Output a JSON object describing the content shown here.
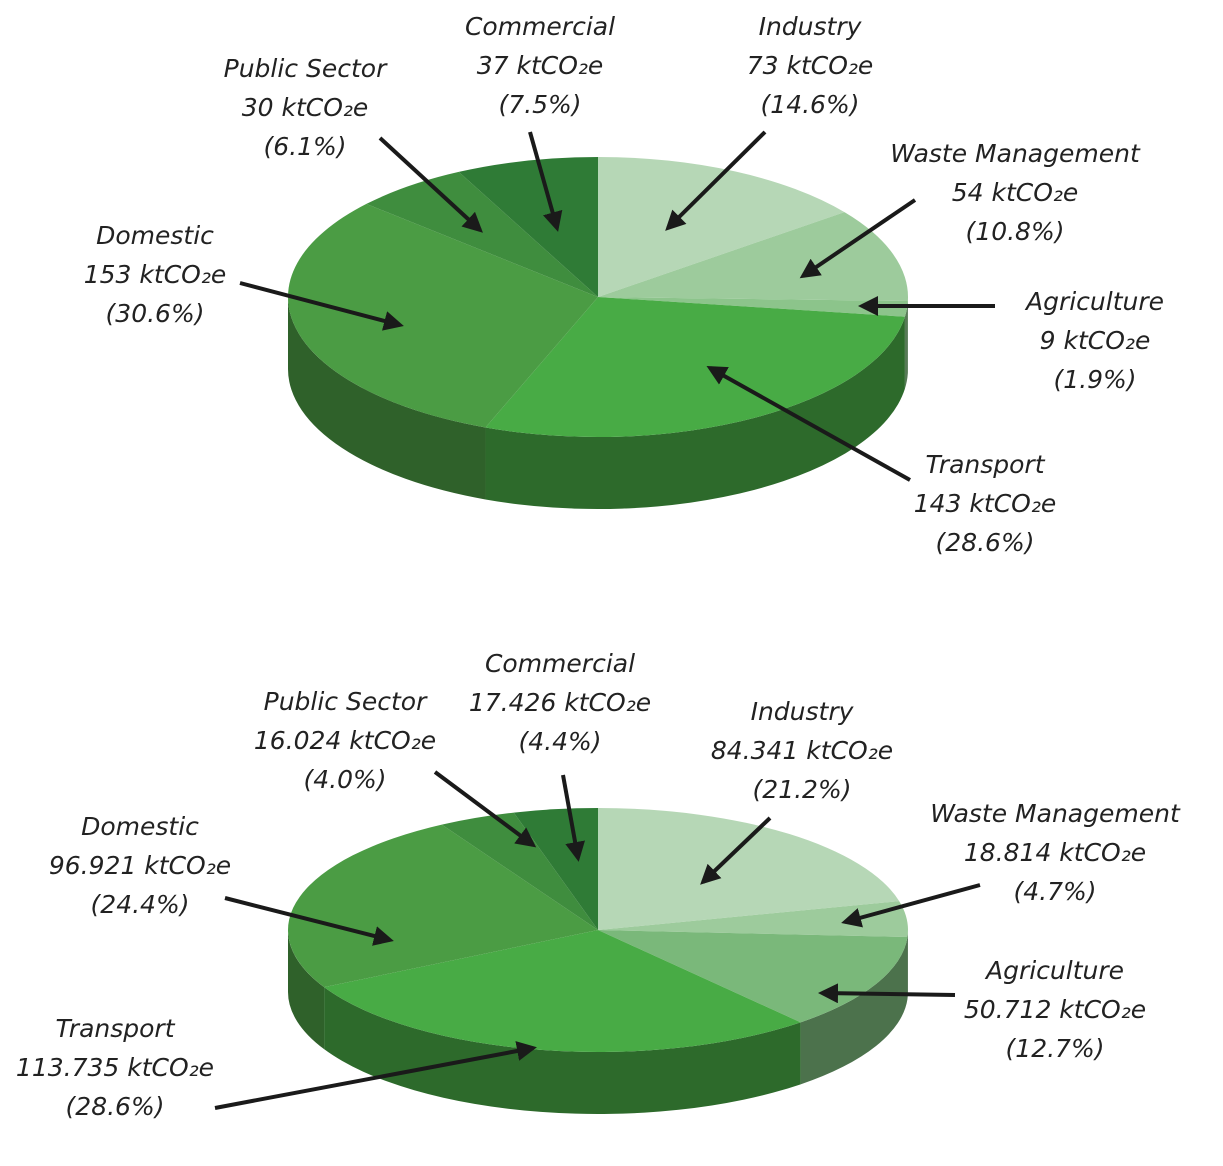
{
  "chart_data": [
    {
      "type": "pie",
      "categories": [
        "Industry",
        "Waste Management",
        "Agriculture",
        "Transport",
        "Domestic",
        "Public Sector",
        "Commercial"
      ],
      "values": [
        73,
        54,
        9,
        143,
        153,
        30,
        37
      ],
      "value_labels": [
        "73 ktCO₂e",
        "54 ktCO₂e",
        "9 ktCO₂e",
        "143 ktCO₂e",
        "153 ktCO₂e",
        "30 ktCO₂e",
        "37 ktCO₂e"
      ],
      "percent_labels": [
        "(14.6%)",
        "(10.8%)",
        "(1.9%)",
        "(28.6%)",
        "(30.6%)",
        "(6.1%)",
        "(7.5%)"
      ],
      "colors": [
        "#b6d7b6",
        "#9dcb9c",
        "#8cc48b",
        "#48ab45",
        "#4b9c44",
        "#3f8d3e",
        "#2f7b36"
      ]
    },
    {
      "type": "pie",
      "categories": [
        "Industry",
        "Waste Management",
        "Agriculture",
        "Transport",
        "Domestic",
        "Public Sector",
        "Commercial"
      ],
      "values": [
        84.341,
        18.814,
        50.712,
        113.735,
        96.921,
        16.024,
        17.426
      ],
      "value_labels": [
        "84.341 ktCO₂e",
        "18.814 ktCO₂e",
        "50.712 ktCO₂e",
        "113.735 ktCO₂e",
        "96.921 ktCO₂e",
        "16.024 ktCO₂e",
        "17.426 ktCO₂e"
      ],
      "percent_labels": [
        "(21.2%)",
        "(4.7%)",
        "(12.7%)",
        "(28.6%)",
        "(24.4%)",
        "(4.0%)",
        "(4.4%)"
      ],
      "colors": [
        "#b6d7b6",
        "#9dcb9c",
        "#7ab87a",
        "#48ab45",
        "#4b9c44",
        "#3f8d3e",
        "#2f7b36"
      ]
    }
  ]
}
